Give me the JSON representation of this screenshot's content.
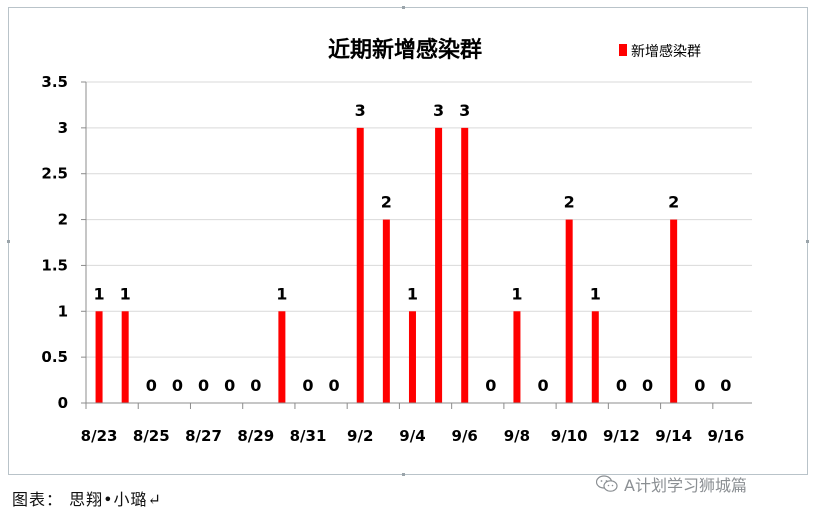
{
  "chart_data": {
    "type": "bar",
    "title": "近期新增感染群",
    "xlabel": "",
    "ylabel": "",
    "ylim": [
      0,
      3.5
    ],
    "yticks": [
      "0",
      "0.5",
      "1",
      "1.5",
      "2",
      "2.5",
      "3",
      "3.5"
    ],
    "x_tick_labels": [
      "8/23",
      "8/25",
      "8/27",
      "8/29",
      "8/31",
      "9/2",
      "9/4",
      "9/6",
      "9/8",
      "9/10",
      "9/12",
      "9/14",
      "9/16"
    ],
    "categories": [
      "8/23",
      "8/24",
      "8/25",
      "8/26",
      "8/27",
      "8/28",
      "8/29",
      "8/30",
      "8/31",
      "9/1",
      "9/2",
      "9/3",
      "9/4",
      "9/5",
      "9/6",
      "9/7",
      "9/8",
      "9/9",
      "9/10",
      "9/11",
      "9/12",
      "9/13",
      "9/14",
      "9/15",
      "9/16"
    ],
    "series": [
      {
        "name": "新增感染群",
        "values": [
          1,
          1,
          0,
          0,
          0,
          0,
          0,
          1,
          0,
          0,
          3,
          2,
          1,
          3,
          3,
          0,
          1,
          0,
          2,
          1,
          0,
          0,
          2,
          0,
          0
        ]
      }
    ],
    "data_labels": true,
    "grid": true,
    "legend": "top-right",
    "bar_color": "#ff0000"
  },
  "caption": "图表： 思翔•小璐↵",
  "watermark": "A计划学习狮城篇",
  "watermark_icon": "wechat-icon"
}
